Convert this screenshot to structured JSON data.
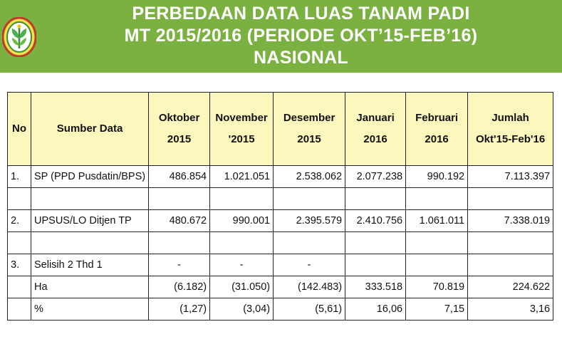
{
  "title": {
    "line1": "PERBEDAAN DATA LUAS TANAM PADI",
    "line2": "MT 2015/2016 (PERIODE OKT’15-FEB’16)",
    "line3": "NASIONAL"
  },
  "colors": {
    "header_bg": "#7bb141",
    "table_header_bg": "#fbf7bd"
  },
  "logo": {
    "icon": "ministry-of-agriculture-seal-icon"
  },
  "table": {
    "headers": {
      "no": "No",
      "source": "Sumber Data",
      "oct": [
        "Oktober",
        "2015"
      ],
      "nov": [
        "November",
        "'2015"
      ],
      "dec": [
        "Desember",
        "2015"
      ],
      "jan": [
        "Januari",
        "2016"
      ],
      "feb": [
        "Februari",
        "2016"
      ],
      "total": [
        "Jumlah",
        "Okt'15-Feb'16"
      ]
    },
    "rows": {
      "sp": {
        "no": "1.",
        "source": "SP (PPD Pusdatin/BPS)",
        "oct": "486.854",
        "nov": "1.021.051",
        "dec": "2.538.062",
        "jan": "2.077.238",
        "feb": "990.192",
        "total": "7.113.397"
      },
      "upsus": {
        "no": "2.",
        "source": "UPSUS/LO Ditjen TP",
        "oct": "480.672",
        "nov": "990.001",
        "dec": "2.395.579",
        "jan": "2.410.756",
        "feb": "1.061.011",
        "total": "7.338.019"
      },
      "selisih": {
        "no": "3.",
        "source": "Selisih 2 Thd 1",
        "oct": "-",
        "nov": "-",
        "dec": "-"
      },
      "ha": {
        "source": "Ha",
        "oct": "(6.182)",
        "nov": "(31.050)",
        "dec": "(142.483)",
        "jan": "333.518",
        "feb": "70.819",
        "total": "224.622"
      },
      "pct": {
        "source": "%",
        "oct": "(1,27)",
        "nov": "(3,04)",
        "dec": "(5,61)",
        "jan": "16,06",
        "feb": "7,15",
        "total": "3,16"
      }
    }
  }
}
